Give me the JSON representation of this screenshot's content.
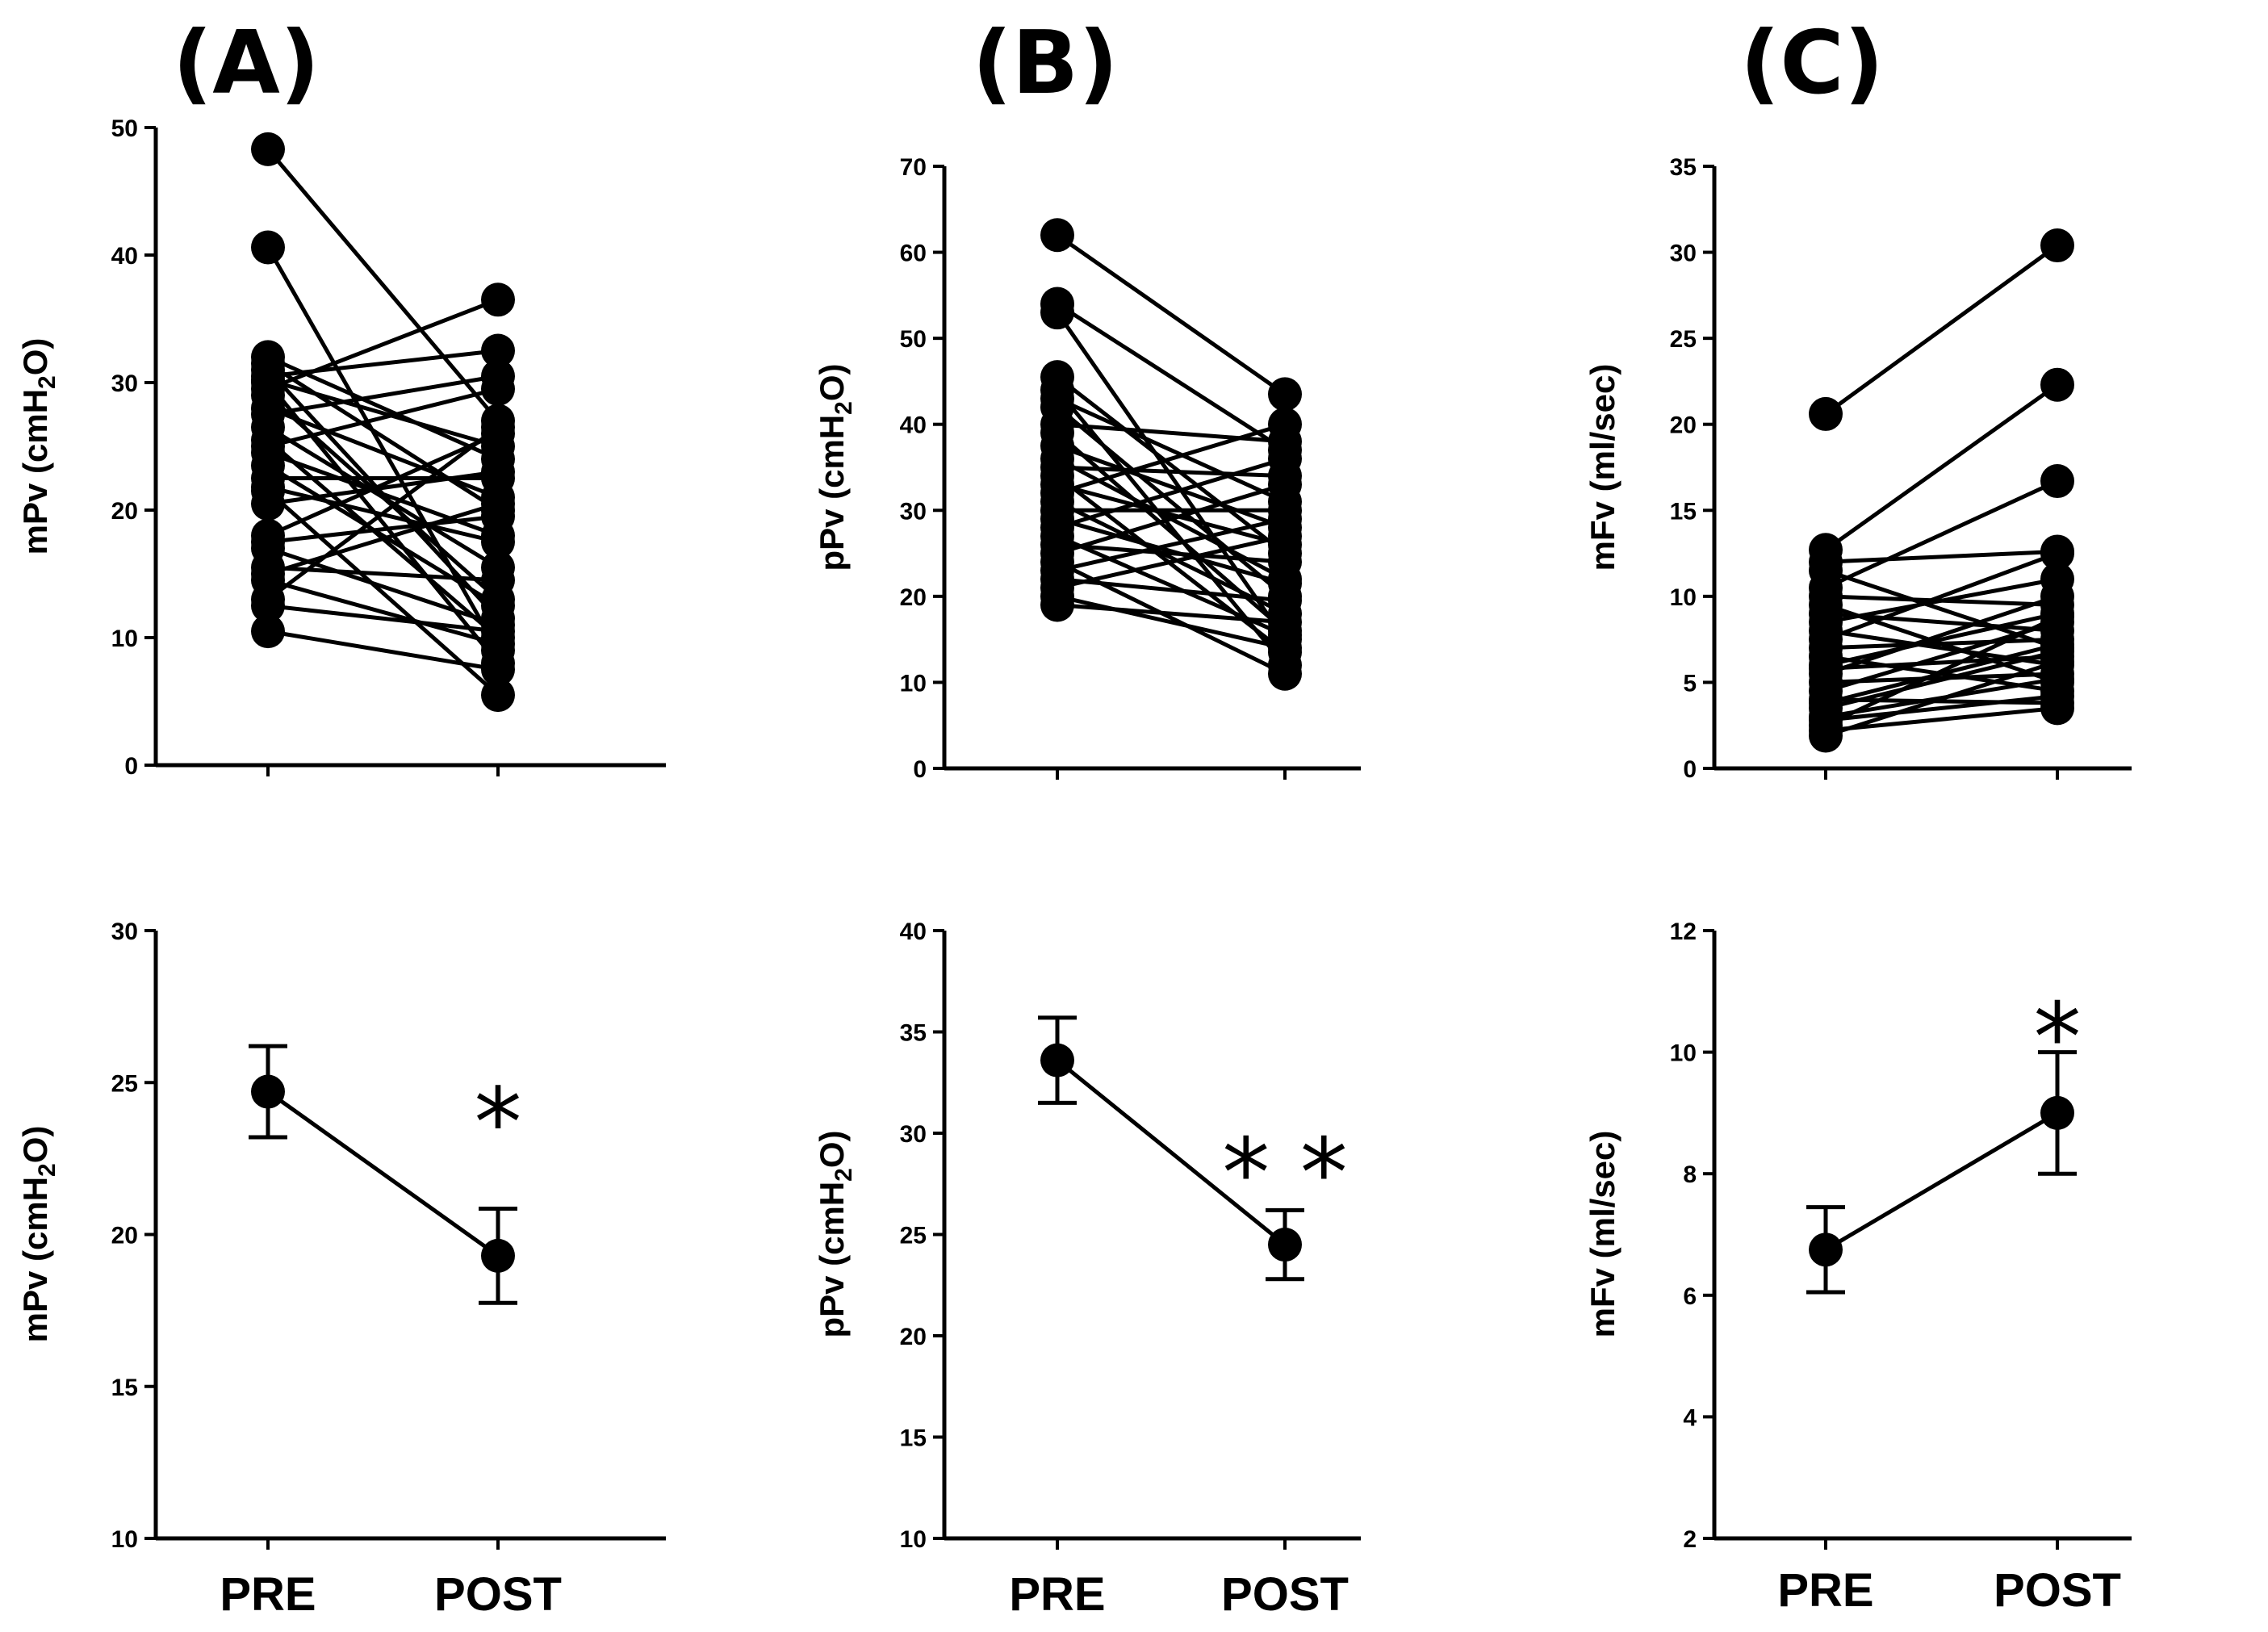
{
  "chart_data": [
    {
      "id": "A-top",
      "type": "line",
      "panel_label": "(A)",
      "title": "",
      "ylabel": "mPv (cmH2O)",
      "ylabel_parts": [
        "mPv (cmH",
        "2",
        "O)"
      ],
      "ylim": [
        0,
        50
      ],
      "yticks": [
        "0",
        "10",
        "20",
        "30",
        "40",
        "50"
      ],
      "categories": [
        "PRE",
        "POST"
      ],
      "show_xtick_labels": false,
      "paired": [
        [
          48.3,
          27.0
        ],
        [
          40.6,
          9.0
        ],
        [
          32.0,
          24.0
        ],
        [
          31.5,
          20.0
        ],
        [
          31.0,
          11.5
        ],
        [
          30.5,
          32.5
        ],
        [
          30.2,
          25.0
        ],
        [
          30.0,
          8.0
        ],
        [
          29.5,
          36.5
        ],
        [
          29.0,
          13.0
        ],
        [
          28.0,
          21.0
        ],
        [
          27.5,
          30.5
        ],
        [
          26.5,
          15.5
        ],
        [
          25.5,
          10.0
        ],
        [
          25.0,
          29.5
        ],
        [
          24.5,
          18.0
        ],
        [
          23.5,
          12.5
        ],
        [
          22.5,
          22.5
        ],
        [
          21.8,
          17.5
        ],
        [
          21.5,
          5.5
        ],
        [
          20.5,
          23.0
        ],
        [
          18.0,
          26.0
        ],
        [
          17.5,
          19.5
        ],
        [
          17.0,
          11.0
        ],
        [
          15.5,
          14.5
        ],
        [
          15.0,
          20.5
        ],
        [
          14.5,
          9.5
        ],
        [
          13.0,
          26.5
        ],
        [
          12.5,
          10.5
        ],
        [
          10.5,
          7.5
        ]
      ]
    },
    {
      "id": "B-top",
      "type": "line",
      "panel_label": "(B)",
      "title": "",
      "ylabel": "pPv (cmH2O)",
      "ylabel_parts": [
        "pPv (cmH",
        "2",
        "O)"
      ],
      "ylim": [
        0,
        70
      ],
      "yticks": [
        "0",
        "10",
        "20",
        "30",
        "40",
        "50",
        "60",
        "70"
      ],
      "categories": [
        "PRE",
        "POST"
      ],
      "show_xtick_labels": false,
      "paired": [
        [
          62.0,
          43.5
        ],
        [
          54.0,
          37.0
        ],
        [
          53.0,
          15.0
        ],
        [
          45.5,
          25.0
        ],
        [
          44.0,
          12.0
        ],
        [
          43.0,
          31.0
        ],
        [
          42.0,
          20.0
        ],
        [
          40.0,
          38.0
        ],
        [
          39.0,
          16.0
        ],
        [
          37.5,
          28.0
        ],
        [
          36.0,
          22.0
        ],
        [
          35.0,
          34.0
        ],
        [
          34.0,
          13.5
        ],
        [
          33.0,
          26.0
        ],
        [
          32.0,
          40.0
        ],
        [
          31.0,
          18.0
        ],
        [
          30.0,
          30.0
        ],
        [
          29.0,
          21.5
        ],
        [
          28.0,
          36.0
        ],
        [
          27.0,
          15.5
        ],
        [
          26.0,
          24.0
        ],
        [
          25.0,
          33.0
        ],
        [
          24.0,
          11.0
        ],
        [
          23.0,
          29.0
        ],
        [
          22.0,
          19.5
        ],
        [
          21.0,
          27.0
        ],
        [
          20.0,
          14.0
        ],
        [
          19.0,
          17.0
        ]
      ]
    },
    {
      "id": "C-top",
      "type": "line",
      "panel_label": "(C)",
      "title": "",
      "ylabel": "mFv (ml/sec)",
      "ylim": [
        0,
        35
      ],
      "yticks": [
        "0",
        "5",
        "10",
        "15",
        "20",
        "25",
        "30",
        "35"
      ],
      "categories": [
        "PRE",
        "POST"
      ],
      "show_xtick_labels": false,
      "paired": [
        [
          20.6,
          30.4
        ],
        [
          12.7,
          22.3
        ],
        [
          12.0,
          12.6
        ],
        [
          11.5,
          7.0
        ],
        [
          10.5,
          16.7
        ],
        [
          10.0,
          9.5
        ],
        [
          9.5,
          5.0
        ],
        [
          9.0,
          8.0
        ],
        [
          8.5,
          11.0
        ],
        [
          8.0,
          6.0
        ],
        [
          7.5,
          12.5
        ],
        [
          7.0,
          7.5
        ],
        [
          6.5,
          4.5
        ],
        [
          6.0,
          9.0
        ],
        [
          5.8,
          6.5
        ],
        [
          5.5,
          10.0
        ],
        [
          5.0,
          5.5
        ],
        [
          4.5,
          8.5
        ],
        [
          4.0,
          3.8
        ],
        [
          3.8,
          7.2
        ],
        [
          3.5,
          6.8
        ],
        [
          3.0,
          5.2
        ],
        [
          2.8,
          4.2
        ],
        [
          2.5,
          8.8
        ],
        [
          2.2,
          3.5
        ],
        [
          1.9,
          6.2
        ]
      ]
    },
    {
      "id": "A-bottom",
      "type": "line",
      "ylabel": "mPv (cmH2O)",
      "ylabel_parts": [
        "mPv (cmH",
        "2",
        "O)"
      ],
      "ylim": [
        10,
        30
      ],
      "yticks": [
        "10",
        "15",
        "20",
        "25",
        "30"
      ],
      "categories": [
        "PRE",
        "POST"
      ],
      "show_xtick_labels": true,
      "mean": [
        24.7,
        19.3
      ],
      "error": [
        1.5,
        1.55
      ],
      "annotation": "*",
      "annotation_y": 24.2
    },
    {
      "id": "B-bottom",
      "type": "line",
      "ylabel": "pPv (cmH2O)",
      "ylabel_parts": [
        "pPv (cmH",
        "2",
        "O)"
      ],
      "ylim": [
        10,
        40
      ],
      "yticks": [
        "10",
        "15",
        "20",
        "25",
        "30",
        "35",
        "40"
      ],
      "categories": [
        "PRE",
        "POST"
      ],
      "show_xtick_labels": true,
      "mean": [
        33.6,
        24.5
      ],
      "error": [
        2.1,
        1.7
      ],
      "annotation": "* *",
      "annotation_y": 28.8
    },
    {
      "id": "C-bottom",
      "type": "line",
      "ylabel": "mFv (ml/sec)",
      "ylim": [
        2,
        12
      ],
      "yticks": [
        "2",
        "4",
        "6",
        "8",
        "10",
        "12"
      ],
      "categories": [
        "PRE",
        "POST"
      ],
      "show_xtick_labels": true,
      "mean": [
        6.75,
        9.0
      ],
      "error": [
        0.7,
        1.0
      ],
      "annotation": "*",
      "annotation_y": 10.5
    }
  ]
}
